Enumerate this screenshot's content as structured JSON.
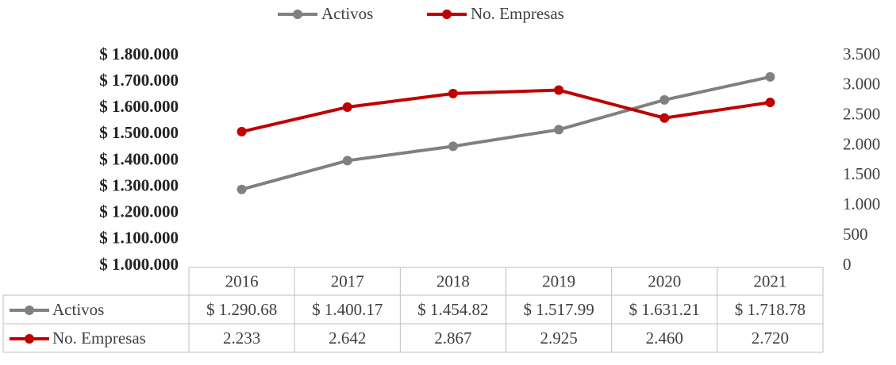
{
  "chart_data": {
    "type": "line",
    "categories": [
      "2016",
      "2017",
      "2018",
      "2019",
      "2020",
      "2021"
    ],
    "series": [
      {
        "name": "Activos",
        "color": "#808080",
        "axis": "y",
        "values": [
          1290680,
          1400170,
          1454820,
          1517990,
          1631210,
          1718780
        ],
        "value_labels": [
          "$ 1.290.68",
          "$ 1.400.17",
          "$ 1.454.82",
          "$ 1.517.99",
          "$ 1.631.21",
          "$ 1.718.78"
        ]
      },
      {
        "name": "No. Empresas",
        "color": "#c00000",
        "axis": "y2",
        "values": [
          2233,
          2642,
          2867,
          2925,
          2460,
          2720
        ],
        "value_labels": [
          "2.233",
          "2.642",
          "2.867",
          "2.925",
          "2.460",
          "2.720"
        ]
      }
    ],
    "ylim": [
      1000000,
      1800000
    ],
    "yticks": [
      {
        "value": 1000000,
        "label": "$ 1.000.000"
      },
      {
        "value": 1100000,
        "label": "$ 1.100.000"
      },
      {
        "value": 1200000,
        "label": "$ 1.200.000"
      },
      {
        "value": 1300000,
        "label": "$ 1.300.000"
      },
      {
        "value": 1400000,
        "label": "$ 1.400.000"
      },
      {
        "value": 1500000,
        "label": "$ 1.500.000"
      },
      {
        "value": 1600000,
        "label": "$ 1.600.000"
      },
      {
        "value": 1700000,
        "label": "$ 1.700.000"
      },
      {
        "value": 1800000,
        "label": "$ 1.800.000"
      }
    ],
    "y2lim": [
      0,
      3500
    ],
    "y2ticks": [
      0,
      500,
      {
        "value": 1000,
        "label": "1.000"
      },
      {
        "value": 1500,
        "label": "1.500"
      },
      {
        "value": 2000,
        "label": "2.000"
      },
      {
        "value": 2500,
        "label": "2.500"
      },
      {
        "value": 3000,
        "label": "3.000"
      },
      {
        "value": 3500,
        "label": "3.500"
      }
    ],
    "legend": "top"
  }
}
